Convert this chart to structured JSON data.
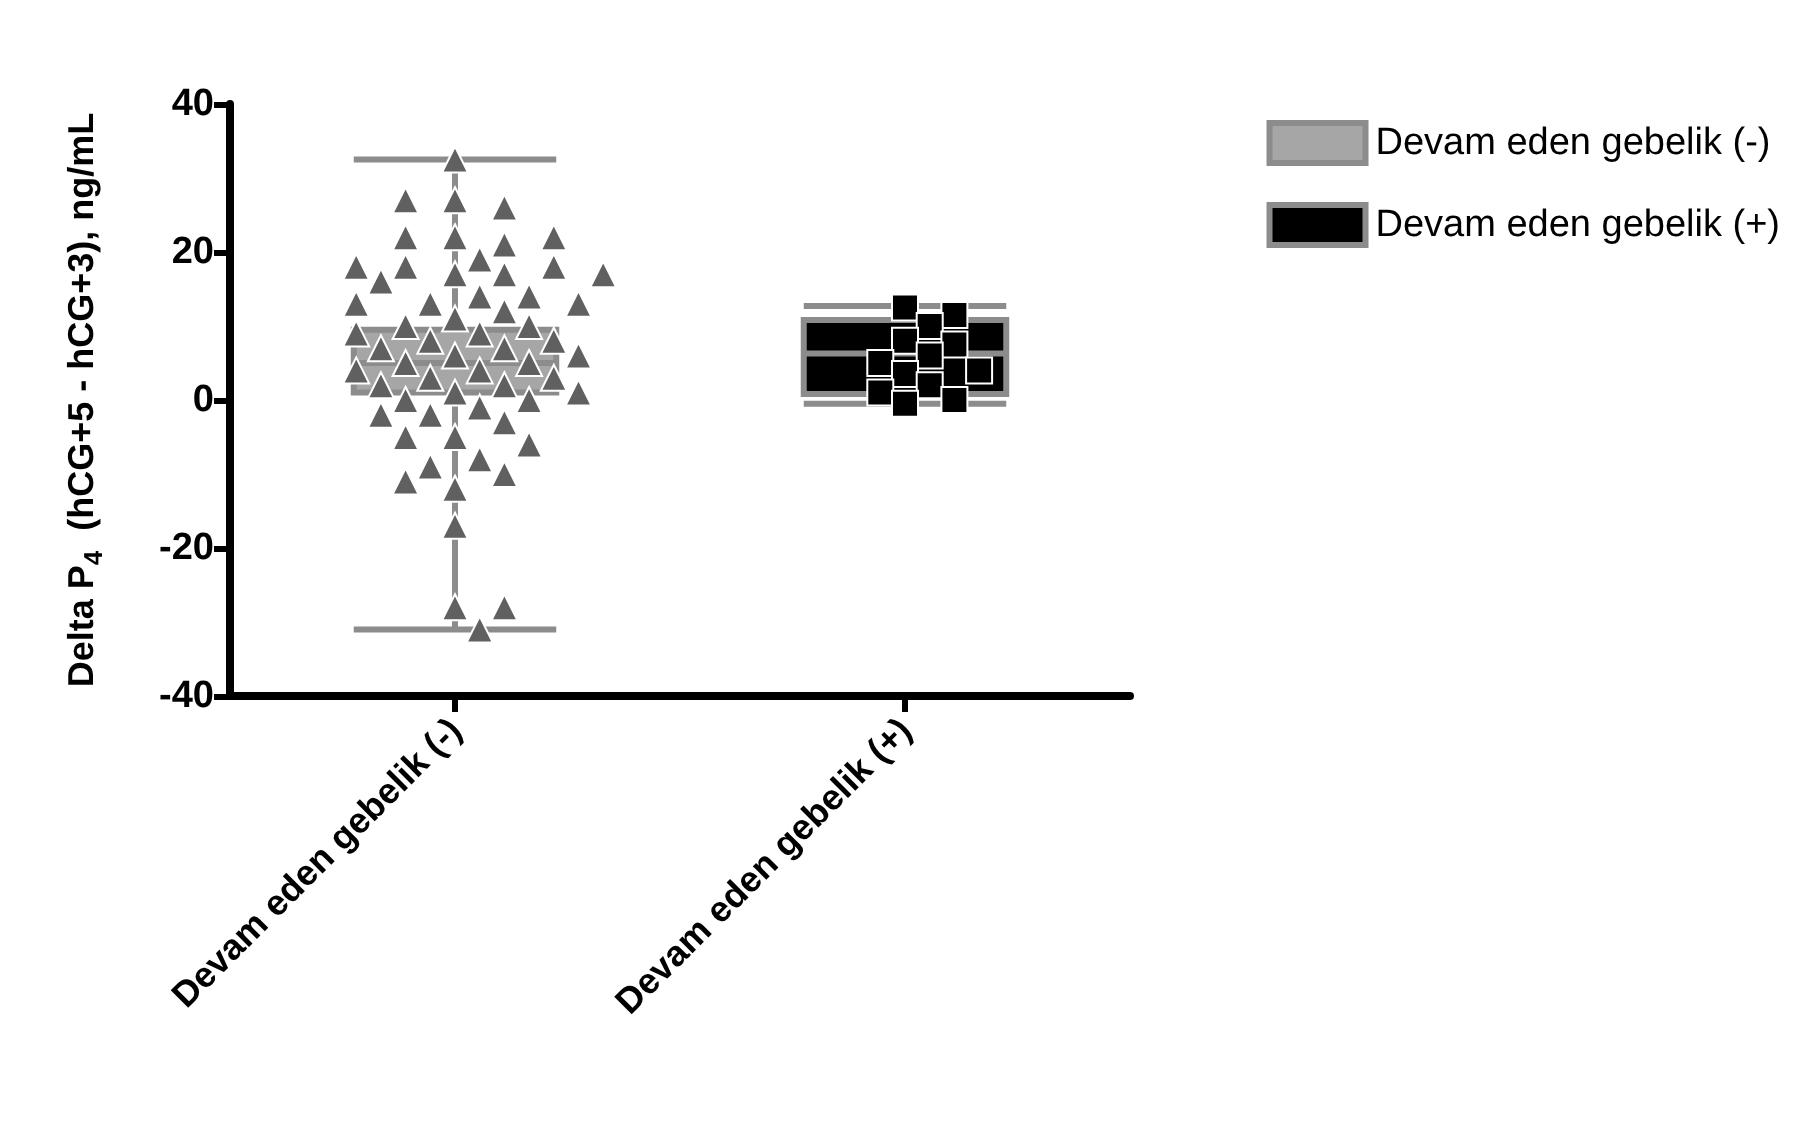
{
  "chart_data": {
    "type": "box",
    "ylabel": "Delta P$_{4}$  (hCG+5 - hCG+3), ng/mL",
    "categories": [
      "Devam eden gebelik (-)",
      "Devam eden gebelik (+)"
    ],
    "ylim": [
      -40,
      40
    ],
    "yticks": [
      -40,
      -20,
      0,
      20,
      40
    ],
    "grid": false,
    "legend": "top right",
    "series": [
      {
        "name": "Devam eden gebelik (-)",
        "color": "#a6a6a6",
        "boxes": [
          {
            "low": -31,
            "q1": 1,
            "median": 5,
            "q3": 9.5,
            "high": 32.5
          },
          null
        ]
      },
      {
        "name": "Devam eden gebelik (+)",
        "color": "#000000",
        "boxes": [
          null,
          {
            "low": -0.5,
            "q1": 0.8,
            "median": 6.3,
            "q3": 10.8,
            "high": 12.7
          }
        ]
      },
      {
        "type": "scatter",
        "color": "#606060",
        "marker": "triangle",
        "x": [
          "Devam eden gebelik (-)",
          "Devam eden gebelik (-)",
          "Devam eden gebelik (-)",
          "Devam eden gebelik (-)",
          "Devam eden gebelik (-)",
          "Devam eden gebelik (-)",
          "Devam eden gebelik (-)",
          "Devam eden gebelik (-)",
          "Devam eden gebelik (-)",
          "Devam eden gebelik (-)",
          "Devam eden gebelik (-)",
          "Devam eden gebelik (-)",
          "Devam eden gebelik (-)",
          "Devam eden gebelik (-)",
          "Devam eden gebelik (-)",
          "Devam eden gebelik (-)",
          "Devam eden gebelik (-)",
          "Devam eden gebelik (-)",
          "Devam eden gebelik (-)",
          "Devam eden gebelik (-)",
          "Devam eden gebelik (-)",
          "Devam eden gebelik (-)",
          "Devam eden gebelik (-)",
          "Devam eden gebelik (-)",
          "Devam eden gebelik (-)",
          "Devam eden gebelik (-)",
          "Devam eden gebelik (-)",
          "Devam eden gebelik (-)",
          "Devam eden gebelik (-)",
          "Devam eden gebelik (-)",
          "Devam eden gebelik (-)",
          "Devam eden gebelik (-)",
          "Devam eden gebelik (-)",
          "Devam eden gebelik (-)",
          "Devam eden gebelik (-)",
          "Devam eden gebelik (-)",
          "Devam eden gebelik (-)",
          "Devam eden gebelik (-)",
          "Devam eden gebelik (-)",
          "Devam eden gebelik (-)",
          "Devam eden gebelik (-)",
          "Devam eden gebelik (-)",
          "Devam eden gebelik (-)",
          "Devam eden gebelik (-)",
          "Devam eden gebelik (-)",
          "Devam eden gebelik (-)",
          "Devam eden gebelik (-)",
          "Devam eden gebelik (-)",
          "Devam eden gebelik (-)",
          "Devam eden gebelik (-)",
          "Devam eden gebelik (-)",
          "Devam eden gebelik (-)",
          "Devam eden gebelik (-)",
          "Devam eden gebelik (-)",
          "Devam eden gebelik (-)",
          "Devam eden gebelik (-)",
          "Devam eden gebelik (-)",
          "Devam eden gebelik (-)",
          "Devam eden gebelik (-)",
          "Devam eden gebelik (-)",
          "Devam eden gebelik (-)"
        ],
        "values": [
          32.5,
          27,
          26,
          27,
          22,
          21,
          22,
          22,
          17,
          17,
          18,
          18,
          19,
          18,
          16,
          17,
          14,
          13,
          14,
          13,
          12,
          13,
          11,
          10,
          10,
          9,
          9,
          8,
          8,
          7,
          7,
          6,
          6,
          5,
          5,
          4,
          4,
          3,
          3,
          2,
          2,
          1,
          1,
          0,
          0,
          -1,
          -2,
          -3,
          -2,
          -5,
          -5,
          -6,
          -8,
          -9,
          -10,
          -12,
          -11,
          -17,
          -28,
          -28,
          -31
        ]
      },
      {
        "type": "scatter",
        "color": "#000000",
        "marker": "square",
        "x": [
          "Devam eden gebelik (+)",
          "Devam eden gebelik (+)",
          "Devam eden gebelik (+)",
          "Devam eden gebelik (+)",
          "Devam eden gebelik (+)",
          "Devam eden gebelik (+)",
          "Devam eden gebelik (+)",
          "Devam eden gebelik (+)",
          "Devam eden gebelik (+)",
          "Devam eden gebelik (+)",
          "Devam eden gebelik (+)",
          "Devam eden gebelik (+)",
          "Devam eden gebelik (+)"
        ],
        "values": [
          12.5,
          11.5,
          10,
          8,
          7.5,
          6,
          5,
          4,
          3.5,
          2,
          1,
          0,
          -0.5
        ]
      }
    ]
  }
}
